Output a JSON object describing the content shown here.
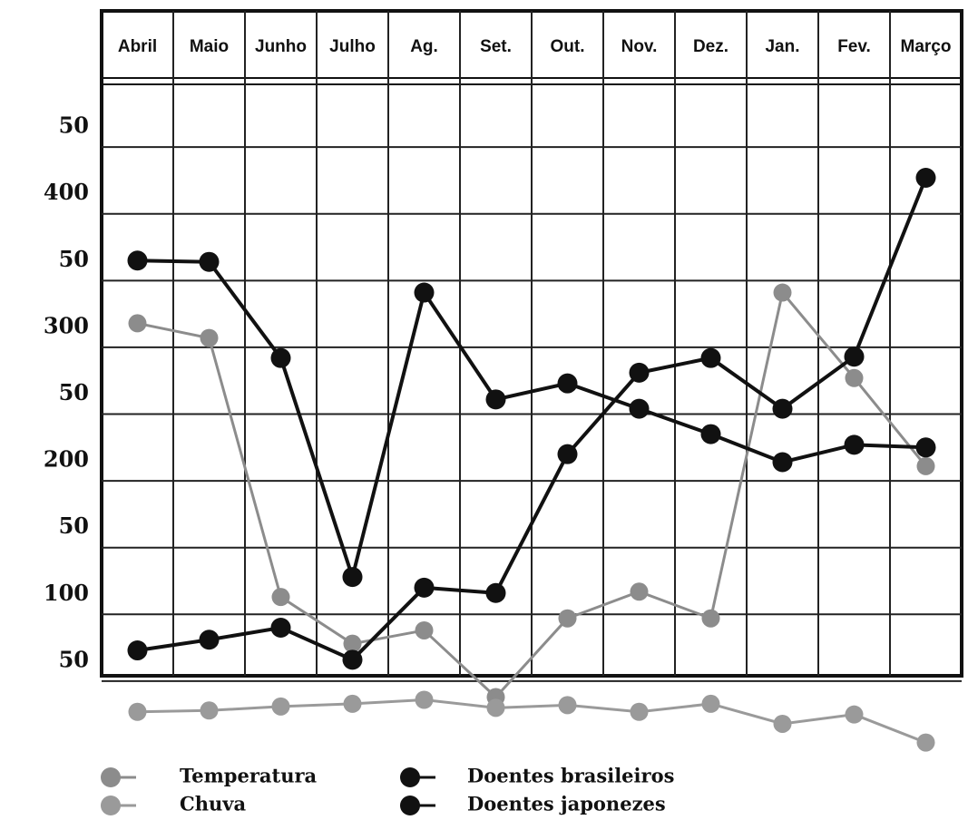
{
  "chart_data": {
    "type": "line",
    "categories": [
      "Abril",
      "Maio",
      "Junho",
      "Julho",
      "Ag.",
      "Set.",
      "Out.",
      "Nov.",
      "Dez.",
      "Jan.",
      "Fev.",
      "Março"
    ],
    "series": [
      {
        "name": "Temperatura",
        "color": "#8c8c8c",
        "values": [
          318,
          307,
          113,
          78,
          88,
          38,
          97,
          117,
          97,
          341,
          277,
          211
        ]
      },
      {
        "name": "Chuva",
        "color": "#9a9a9a",
        "values": [
          27,
          28,
          31,
          33,
          36,
          30,
          32,
          27,
          33,
          18,
          25,
          4
        ]
      },
      {
        "name": "Doentes brasileiros",
        "color": "#111111",
        "values": [
          365,
          364,
          292,
          128,
          341,
          261,
          273,
          254,
          235,
          214,
          227,
          225
        ]
      },
      {
        "name": "Doentes japonezes",
        "color": "#111111",
        "values": [
          73,
          81,
          90,
          66,
          120,
          116,
          220,
          281,
          292,
          254,
          293,
          427
        ]
      }
    ],
    "ylim": [
      54,
      499
    ],
    "yticks": [
      {
        "value": 450,
        "label": "50"
      },
      400,
      {
        "value": 350,
        "label": "50"
      },
      300,
      {
        "value": 250,
        "label": "50"
      },
      200,
      {
        "value": 150,
        "label": "50"
      },
      100,
      50
    ],
    "grid": true,
    "legend": "bottom"
  }
}
